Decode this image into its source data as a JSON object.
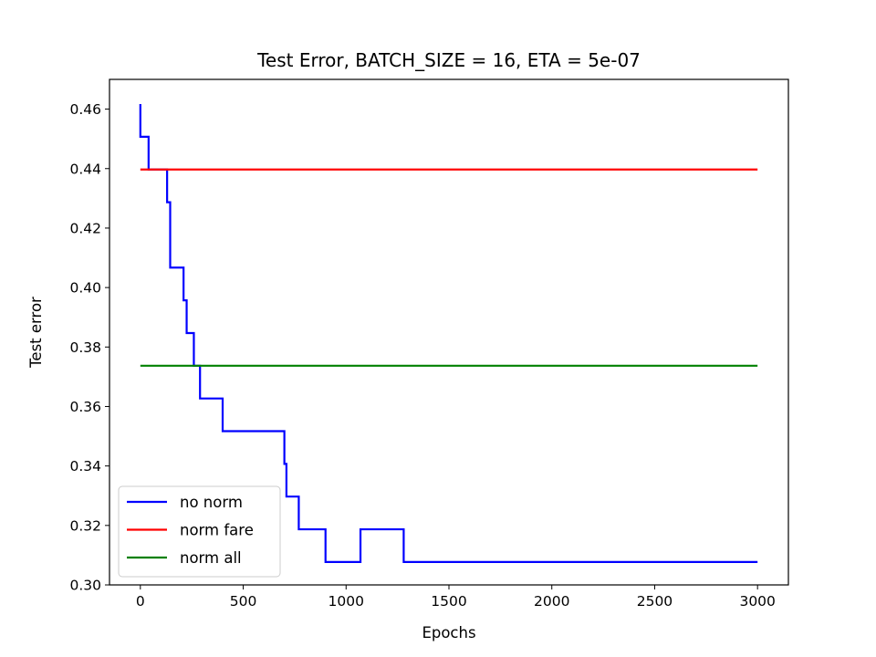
{
  "chart_data": {
    "type": "line",
    "title": "Test Error, BATCH_SIZE = 16, ETA = 5e-07",
    "xlabel": "Epochs",
    "ylabel": "Test error",
    "xlim": [
      -150,
      3150
    ],
    "ylim": [
      0.3,
      0.47
    ],
    "xticks": [
      0,
      500,
      1000,
      1500,
      2000,
      2500,
      3000
    ],
    "xtick_labels": [
      "0",
      "500",
      "1000",
      "1500",
      "2000",
      "2500",
      "3000"
    ],
    "yticks": [
      0.3,
      0.32,
      0.34,
      0.36,
      0.38,
      0.4,
      0.42,
      0.44,
      0.46
    ],
    "ytick_labels": [
      "0.30",
      "0.32",
      "0.34",
      "0.36",
      "0.38",
      "0.40",
      "0.42",
      "0.44",
      "0.46"
    ],
    "grid": false,
    "legend_position": "lower-left",
    "series": [
      {
        "name": "no norm",
        "color": "#0000ff",
        "step": true,
        "x": [
          0,
          30,
          40,
          130,
          145,
          210,
          225,
          260,
          290,
          400,
          700,
          710,
          770,
          900,
          1070,
          1280,
          2900,
          3000
        ],
        "y": [
          0.4617,
          0.4507,
          0.4507,
          0.4397,
          0.4287,
          0.4067,
          0.3957,
          0.3847,
          0.3737,
          0.3627,
          0.3517,
          0.3407,
          0.3297,
          0.3187,
          0.3077,
          0.3187,
          0.3077,
          0.3077
        ]
      },
      {
        "name": "norm fare",
        "color": "#ff0000",
        "step": false,
        "x": [
          0,
          3000
        ],
        "y": [
          0.4397,
          0.4397
        ]
      },
      {
        "name": "norm all",
        "color": "#008000",
        "step": false,
        "x": [
          0,
          3000
        ],
        "y": [
          0.3737,
          0.3737
        ]
      }
    ]
  }
}
